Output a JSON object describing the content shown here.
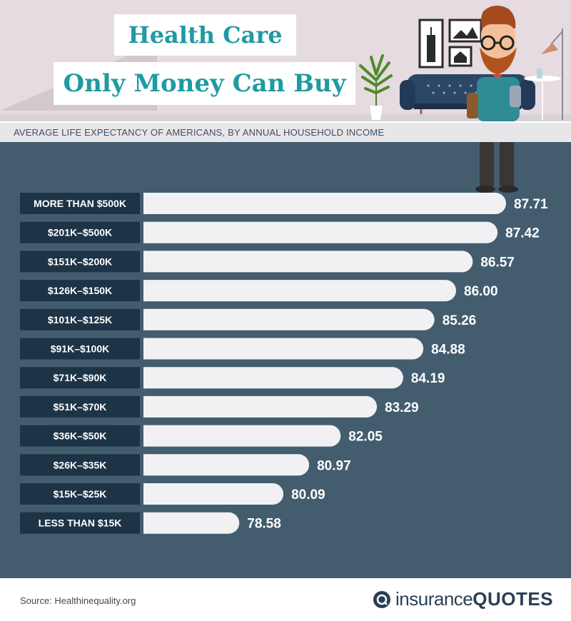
{
  "header": {
    "title_line1": "Health Care",
    "title_line2": "Only Money Can Buy",
    "subtitle": "AVERAGE LIFE EXPECTANCY OF AMERICANS, BY ANNUAL HOUSEHOLD INCOME"
  },
  "chart_data": {
    "type": "bar",
    "orientation": "horizontal",
    "categories": [
      "MORE THAN $500K",
      "$201K–$500K",
      "$151K–$200K",
      "$126K–$150K",
      "$101K–$125K",
      "$91K–$100K",
      "$71K–$90K",
      "$51K–$70K",
      "$36K–$50K",
      "$26K–$35K",
      "$15K–$25K",
      "LESS THAN $15K"
    ],
    "values": [
      87.71,
      87.42,
      86.57,
      86.0,
      85.26,
      84.88,
      84.19,
      83.29,
      82.05,
      80.97,
      80.09,
      78.58
    ],
    "value_labels": [
      "87.71",
      "87.42",
      "86.57",
      "86.00",
      "85.26",
      "84.88",
      "84.19",
      "83.29",
      "82.05",
      "80.97",
      "80.09",
      "78.58"
    ],
    "title": "AVERAGE LIFE EXPECTANCY OF AMERICANS, BY ANNUAL HOUSEHOLD INCOME",
    "xlim": [
      75.3,
      87.71
    ],
    "colors": {
      "bar": "#f1f1f3",
      "label_box": "#1d3447",
      "panel": "#435d6f",
      "label_text": "#ffffff",
      "value_text": "#ffffff"
    }
  },
  "footer": {
    "source": "Source: Healthinequality.org",
    "logo_insurance": "insurance",
    "logo_quotes": "QUOTES"
  },
  "colors": {
    "title_teal": "#1f9aa3",
    "wall": "#e5dbe0"
  },
  "icons": [
    "illustration-man-icon",
    "sofa-icon",
    "plant-icon",
    "lamp-icon",
    "picture-frame-icon",
    "insurancequotes-logo-icon"
  ]
}
